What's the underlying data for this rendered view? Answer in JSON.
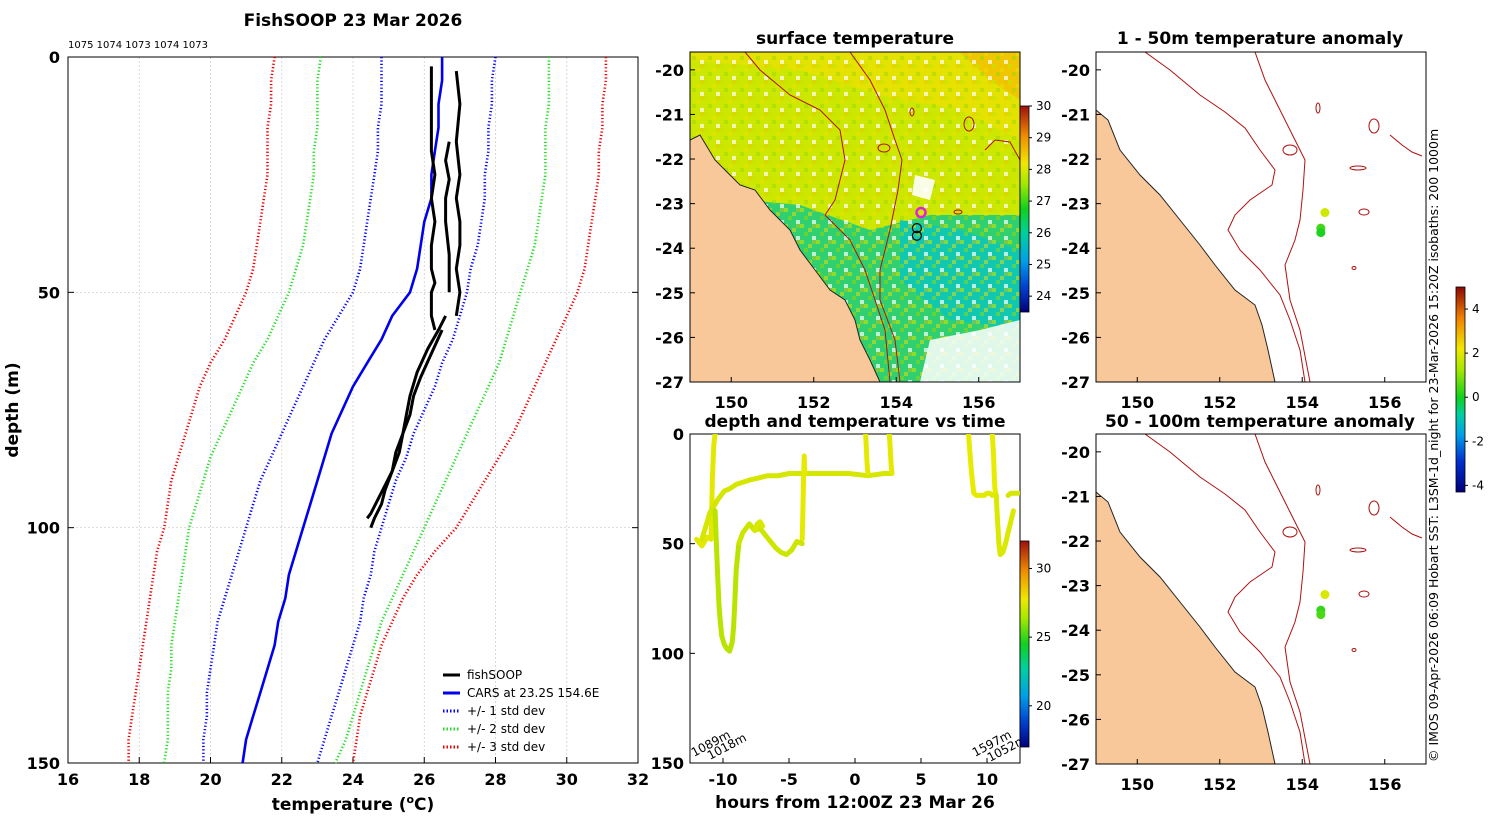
{
  "colors": {
    "fishsoop": "#000000",
    "cars": "#0000ee",
    "std1": "#0000ff",
    "std2": "#22dd22",
    "std3": "#ee0000",
    "land": "#f8c89a",
    "isobath": "#b01010",
    "grid": "#c8c8c8"
  },
  "chart_data": [
    {
      "type": "line",
      "title": "FishSOOP 23 Mar 2026",
      "top_labels": "1075 1074 1073 1074 1073",
      "xlabel": "temperature (",
      "xlabel_unit_sup": "o",
      "xlabel_unit": "C)",
      "ylabel": "depth (m)",
      "xlim": [
        16,
        32
      ],
      "ylim": [
        0,
        150
      ],
      "y_reversed": true,
      "x_ticks": [
        16,
        18,
        20,
        22,
        24,
        26,
        28,
        30,
        32
      ],
      "y_ticks": [
        0,
        50,
        100,
        150
      ],
      "legend": [
        {
          "label": "fishSOOP",
          "style": "solid",
          "color": "#000000"
        },
        {
          "label": "CARS at 23.2S 154.6E",
          "style": "solid",
          "color": "#0000ee"
        },
        {
          "label": "+/- 1 std dev",
          "style": "dotted",
          "color": "#0000ff"
        },
        {
          "label": "+/- 2 std dev",
          "style": "dotted",
          "color": "#22dd22"
        },
        {
          "label": "+/- 3 std dev",
          "style": "dotted",
          "color": "#ee0000"
        }
      ],
      "depth": [
        0,
        5,
        10,
        15,
        20,
        25,
        30,
        35,
        40,
        45,
        50,
        55,
        60,
        65,
        70,
        75,
        80,
        85,
        90,
        95,
        100,
        105,
        110,
        115,
        120,
        125,
        130,
        135,
        140,
        145,
        150
      ],
      "cars": [
        26.5,
        26.5,
        26.4,
        26.4,
        26.3,
        26.2,
        26.2,
        26.0,
        25.9,
        25.8,
        25.6,
        25.1,
        24.8,
        24.4,
        24.0,
        23.7,
        23.4,
        23.2,
        23.0,
        22.8,
        22.6,
        22.4,
        22.2,
        22.1,
        21.9,
        21.8,
        21.6,
        21.4,
        21.2,
        21.0,
        20.9
      ],
      "sd1_hi": [
        28.0,
        27.9,
        27.9,
        27.8,
        27.8,
        27.7,
        27.7,
        27.6,
        27.5,
        27.3,
        27.2,
        27.0,
        26.8,
        26.5,
        26.3,
        26.0,
        25.7,
        25.5,
        25.2,
        25.0,
        24.8,
        24.6,
        24.5,
        24.3,
        24.2,
        24.0,
        23.8,
        23.6,
        23.4,
        23.2,
        23.0
      ],
      "sd1_lo": [
        24.8,
        24.8,
        24.8,
        24.7,
        24.7,
        24.6,
        24.5,
        24.4,
        24.3,
        24.2,
        24.0,
        23.6,
        23.2,
        22.9,
        22.6,
        22.3,
        22.0,
        21.7,
        21.4,
        21.2,
        21.0,
        20.8,
        20.6,
        20.4,
        20.2,
        20.1,
        20.0,
        19.9,
        19.9,
        19.8,
        19.8
      ],
      "sd2_hi": [
        29.5,
        29.5,
        29.5,
        29.4,
        29.4,
        29.4,
        29.3,
        29.2,
        29.1,
        28.9,
        28.7,
        28.5,
        28.3,
        28.1,
        27.8,
        27.5,
        27.2,
        26.9,
        26.6,
        26.3,
        26.0,
        25.7,
        25.4,
        25.1,
        24.8,
        24.6,
        24.4,
        24.2,
        24.0,
        23.8,
        23.5
      ],
      "sd2_lo": [
        23.1,
        23.0,
        23.0,
        23.0,
        22.9,
        22.9,
        22.8,
        22.7,
        22.6,
        22.4,
        22.2,
        21.9,
        21.6,
        21.2,
        20.9,
        20.6,
        20.3,
        20.0,
        19.8,
        19.6,
        19.4,
        19.3,
        19.2,
        19.1,
        19.0,
        18.9,
        18.9,
        18.8,
        18.8,
        18.8,
        18.7
      ],
      "sd3_hi": [
        31.1,
        31.1,
        31.0,
        31.0,
        30.9,
        30.9,
        30.8,
        30.7,
        30.6,
        30.5,
        30.3,
        30.0,
        29.7,
        29.4,
        29.1,
        28.8,
        28.5,
        28.1,
        27.7,
        27.3,
        26.9,
        26.3,
        25.8,
        25.4,
        25.1,
        24.8,
        24.6,
        24.4,
        24.2,
        24.1,
        24.0
      ],
      "sd3_lo": [
        21.8,
        21.7,
        21.7,
        21.6,
        21.6,
        21.6,
        21.5,
        21.4,
        21.3,
        21.2,
        21.0,
        20.7,
        20.4,
        20.0,
        19.7,
        19.5,
        19.3,
        19.1,
        18.9,
        18.8,
        18.7,
        18.5,
        18.4,
        18.3,
        18.2,
        18.1,
        18.0,
        17.9,
        17.8,
        17.7,
        17.7
      ],
      "fishsoop_profiles": [
        {
          "t": [
            26.2,
            26.2,
            26.2,
            26.3,
            26.2,
            26.3,
            26.2,
            26.2,
            26.3,
            26.2,
            26.2,
            26.2,
            26.3
          ],
          "d": [
            2,
            10,
            20,
            25,
            30,
            35,
            40,
            45,
            48,
            50,
            53,
            55,
            58
          ]
        },
        {
          "t": [
            26.9,
            27.0,
            26.9,
            27.0,
            26.9,
            27.0,
            27.0,
            26.9,
            27.0,
            26.9
          ],
          "d": [
            3,
            10,
            18,
            25,
            30,
            35,
            40,
            45,
            50,
            55
          ]
        },
        {
          "t": [
            26.7,
            26.6,
            26.7,
            26.6,
            26.6,
            26.7,
            26.7
          ],
          "d": [
            18,
            22,
            26,
            30,
            35,
            42,
            50
          ]
        },
        {
          "t": [
            26.6,
            26.4,
            26.1,
            25.8,
            25.6,
            25.5,
            25.4,
            25.2,
            25.1,
            24.9,
            24.7,
            24.5,
            24.4
          ],
          "d": [
            55,
            58,
            62,
            67,
            72,
            76,
            80,
            84,
            88,
            91,
            94,
            97,
            98
          ]
        },
        {
          "t": [
            26.5,
            26.2,
            25.9,
            25.7,
            25.6,
            25.4,
            25.3,
            25.1,
            24.9,
            24.8,
            24.6,
            24.5
          ],
          "d": [
            58,
            63,
            68,
            72,
            76,
            80,
            84,
            88,
            92,
            95,
            98,
            100
          ]
        }
      ]
    },
    {
      "type": "heatmap",
      "title": "surface temperature",
      "xlim": [
        149,
        157
      ],
      "ylim": [
        -27,
        -19.6
      ],
      "x_ticks": [
        150,
        152,
        154,
        156
      ],
      "y_ticks": [
        -20,
        -21,
        -22,
        -23,
        -24,
        -25,
        -26,
        -27
      ],
      "colorbar_ticks": [
        24,
        25,
        26,
        27,
        28,
        29,
        30
      ],
      "colorbar_range": [
        23.5,
        30
      ],
      "markers": [
        {
          "label": "current position",
          "lon": 154.6,
          "lat": -23.2
        },
        {
          "label": "earlier position",
          "lon": 154.5,
          "lat": -23.55
        },
        {
          "label": "earlier position",
          "lon": 154.5,
          "lat": -23.72
        }
      ]
    },
    {
      "type": "scatter",
      "title": "depth and temperature vs time",
      "xlabel": "hours from 12:00Z 23 Mar 26",
      "xlim": [
        -12.5,
        12.5
      ],
      "ylim": [
        0,
        150
      ],
      "y_reversed": true,
      "x_ticks": [
        -10,
        -5,
        0,
        5,
        10
      ],
      "y_ticks": [
        0,
        50,
        100,
        150
      ],
      "colorbar_ticks": [
        20,
        25,
        30
      ],
      "colorbar_range": [
        17,
        32
      ],
      "bottom_labels": [
        "1089m",
        "1018m",
        "1597m",
        "1052m"
      ],
      "tracks": [
        {
          "color": "#e2e800",
          "hours": [
            -12.0,
            -11.6,
            -11.2,
            -10.9,
            -10.8,
            -10.7,
            -10.6
          ],
          "depth": [
            48,
            51,
            47,
            48,
            20,
            5,
            0
          ]
        },
        {
          "color": "#d5e600",
          "hours": [
            -11.6,
            -11.0,
            -10.4,
            -9.9,
            -9.5,
            -9.0,
            -8.5,
            -8.0,
            -7.3,
            -6.6,
            -5.8,
            -5.0,
            -4.2,
            -3.4,
            -2.0,
            -0.5,
            1.0,
            2.2,
            2.7
          ],
          "depth": [
            48,
            36,
            30,
            26,
            25,
            23,
            22,
            21,
            20,
            19,
            19,
            18,
            18,
            18,
            18,
            18,
            19,
            18,
            18
          ]
        },
        {
          "color": "#e3ea00",
          "hours": [
            0.8,
            0.85,
            0.9,
            0.95,
            1.0
          ],
          "depth": [
            0,
            5,
            12,
            16,
            18
          ]
        },
        {
          "color": "#e3ea00",
          "hours": [
            2.6,
            2.65,
            2.7,
            2.75,
            2.8
          ],
          "depth": [
            0,
            5,
            10,
            15,
            18
          ]
        },
        {
          "color": "#e6ea00",
          "hours": [
            -4.0,
            -3.95,
            -3.9,
            -3.85,
            -3.8
          ],
          "depth": [
            48,
            35,
            22,
            10,
            18
          ]
        },
        {
          "color": "#b8e400",
          "hours": [
            -10.6,
            -10.5,
            -10.4,
            -10.3,
            -10.2,
            -10.1,
            -9.9,
            -9.7,
            -9.5,
            -9.3,
            -9.2,
            -9.1,
            -9.0,
            -8.8
          ],
          "depth": [
            35,
            50,
            65,
            78,
            86,
            92,
            96,
            98,
            99,
            95,
            88,
            76,
            62,
            50
          ]
        },
        {
          "color": "#cde600",
          "hours": [
            -8.8,
            -8.5,
            -8.0,
            -7.6,
            -7.2,
            -6.8,
            -6.4,
            -6.0,
            -5.6,
            -5.2,
            -4.8,
            -4.4,
            -4.0
          ],
          "depth": [
            50,
            45,
            41,
            44,
            43,
            46,
            49,
            52,
            54,
            55,
            53,
            49,
            50
          ]
        },
        {
          "color": "#d8e800",
          "hours": [
            -7.6,
            -7.4,
            -7.2,
            -7.0
          ],
          "depth": [
            44,
            41,
            40,
            42
          ]
        },
        {
          "color": "#e7eb00",
          "hours": [
            8.6,
            8.7,
            8.8,
            8.9,
            9.0,
            9.2
          ],
          "depth": [
            0,
            8,
            16,
            22,
            27,
            28
          ]
        },
        {
          "color": "#e2ea00",
          "hours": [
            9.2,
            9.5,
            9.8,
            10.0,
            10.2,
            10.4,
            10.6
          ],
          "depth": [
            28,
            28,
            28,
            27,
            27,
            28,
            27
          ]
        },
        {
          "color": "#e7ec00",
          "hours": [
            10.4,
            10.5,
            10.55,
            10.6,
            10.7
          ],
          "depth": [
            0,
            10,
            20,
            25,
            28
          ]
        },
        {
          "color": "#dbe800",
          "hours": [
            10.7,
            10.8,
            10.9,
            11.0,
            11.2,
            11.4,
            11.6,
            11.8,
            12.0
          ],
          "depth": [
            28,
            40,
            50,
            55,
            54,
            50,
            45,
            40,
            35
          ]
        },
        {
          "color": "#d5e600",
          "hours": [
            11.6,
            11.8,
            12.0,
            12.2,
            12.4
          ],
          "depth": [
            28,
            27,
            27,
            27,
            27
          ]
        }
      ]
    },
    {
      "type": "scatter",
      "title": "1 - 50m temperature anomaly",
      "xlim": [
        149,
        157
      ],
      "ylim": [
        -27,
        -19.6
      ],
      "x_ticks": [
        150,
        152,
        154,
        156
      ],
      "y_ticks": [
        -20,
        -21,
        -22,
        -23,
        -24,
        -25,
        -26,
        -27
      ],
      "points": [
        {
          "lon": 154.55,
          "lat": -23.2,
          "anomaly": 1.8
        },
        {
          "lon": 154.45,
          "lat": -23.55,
          "anomaly": 0.4
        },
        {
          "lon": 154.45,
          "lat": -23.65,
          "anomaly": 0.1
        }
      ]
    },
    {
      "type": "scatter",
      "title": "50 - 100m temperature anomaly",
      "xlim": [
        149,
        157
      ],
      "ylim": [
        -27,
        -19.6
      ],
      "x_ticks": [
        150,
        152,
        154,
        156
      ],
      "y_ticks": [
        -20,
        -21,
        -22,
        -23,
        -24,
        -25,
        -26,
        -27
      ],
      "points": [
        {
          "lon": 154.55,
          "lat": -23.2,
          "anomaly": 1.9
        },
        {
          "lon": 154.45,
          "lat": -23.55,
          "anomaly": 0.3
        },
        {
          "lon": 154.45,
          "lat": -23.65,
          "anomaly": 0.5
        }
      ]
    }
  ],
  "anomaly_colorbar": {
    "ticks": [
      -4,
      -2,
      0,
      2,
      4
    ],
    "range": [
      -4.3,
      5.0
    ]
  },
  "side_caption": "© IMOS 09-Apr-2026 06:09 Hobart SST: L3SM-1d_night for 23-Mar-2026 15:20Z isobaths: 200  1000m"
}
